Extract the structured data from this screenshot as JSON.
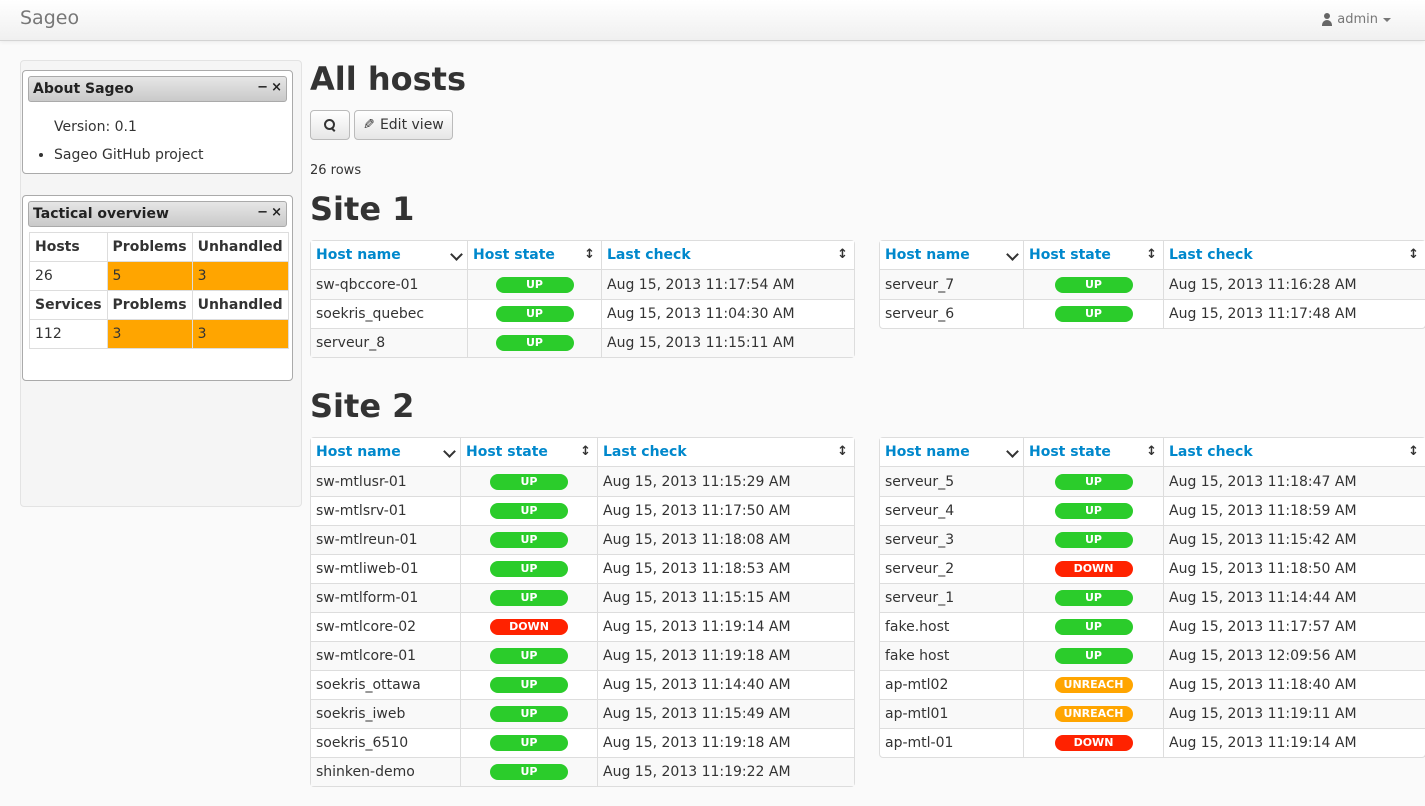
{
  "app": {
    "brand": "Sageo",
    "user": "admin"
  },
  "colors": {
    "up": "#2bcc2b",
    "down": "#ff2200",
    "unreach": "#ffa500",
    "link": "#0088cc",
    "warning": "#ffa500"
  },
  "about": {
    "title": "About Sageo",
    "minimize": "−",
    "close": "×",
    "version": "Version: 0.1",
    "link": "Sageo GitHub project"
  },
  "tactical": {
    "title": "Tactical overview",
    "minimize": "−",
    "close": "×",
    "hosts_label": "Hosts",
    "problems_label": "Problems",
    "unhandled_label": "Unhandled",
    "hosts": "26",
    "hosts_problems": "5",
    "hosts_unhandled": "3",
    "services_label": "Services",
    "services": "112",
    "services_problems": "3",
    "services_unhandled": "3"
  },
  "main": {
    "title": "All hosts",
    "edit_view": "Edit view",
    "rows": "26 rows",
    "columns": {
      "host": "Host name",
      "state": "Host state",
      "check": "Last check"
    }
  },
  "sites": [
    {
      "title": "Site 1",
      "left": [
        {
          "host": "sw-qbccore-01",
          "state": "UP",
          "check": "Aug 15, 2013 11:17:54 AM"
        },
        {
          "host": "soekris_quebec",
          "state": "UP",
          "check": "Aug 15, 2013 11:04:30 AM"
        },
        {
          "host": "serveur_8",
          "state": "UP",
          "check": "Aug 15, 2013 11:15:11 AM"
        }
      ],
      "right": [
        {
          "host": "serveur_7",
          "state": "UP",
          "check": "Aug 15, 2013 11:16:28 AM"
        },
        {
          "host": "serveur_6",
          "state": "UP",
          "check": "Aug 15, 2013 11:17:48 AM"
        }
      ]
    },
    {
      "title": "Site 2",
      "left": [
        {
          "host": "sw-mtlusr-01",
          "state": "UP",
          "check": "Aug 15, 2013 11:15:29 AM"
        },
        {
          "host": "sw-mtlsrv-01",
          "state": "UP",
          "check": "Aug 15, 2013 11:17:50 AM"
        },
        {
          "host": "sw-mtlreun-01",
          "state": "UP",
          "check": "Aug 15, 2013 11:18:08 AM"
        },
        {
          "host": "sw-mtliweb-01",
          "state": "UP",
          "check": "Aug 15, 2013 11:18:53 AM"
        },
        {
          "host": "sw-mtlform-01",
          "state": "UP",
          "check": "Aug 15, 2013 11:15:15 AM"
        },
        {
          "host": "sw-mtlcore-02",
          "state": "DOWN",
          "check": "Aug 15, 2013 11:19:14 AM"
        },
        {
          "host": "sw-mtlcore-01",
          "state": "UP",
          "check": "Aug 15, 2013 11:19:18 AM"
        },
        {
          "host": "soekris_ottawa",
          "state": "UP",
          "check": "Aug 15, 2013 11:14:40 AM"
        },
        {
          "host": "soekris_iweb",
          "state": "UP",
          "check": "Aug 15, 2013 11:15:49 AM"
        },
        {
          "host": "soekris_6510",
          "state": "UP",
          "check": "Aug 15, 2013 11:19:18 AM"
        },
        {
          "host": "shinken-demo",
          "state": "UP",
          "check": "Aug 15, 2013 11:19:22 AM"
        }
      ],
      "right": [
        {
          "host": "serveur_5",
          "state": "UP",
          "check": "Aug 15, 2013 11:18:47 AM"
        },
        {
          "host": "serveur_4",
          "state": "UP",
          "check": "Aug 15, 2013 11:18:59 AM"
        },
        {
          "host": "serveur_3",
          "state": "UP",
          "check": "Aug 15, 2013 11:15:42 AM"
        },
        {
          "host": "serveur_2",
          "state": "DOWN",
          "check": "Aug 15, 2013 11:18:50 AM"
        },
        {
          "host": "serveur_1",
          "state": "UP",
          "check": "Aug 15, 2013 11:14:44 AM"
        },
        {
          "host": "fake.host",
          "state": "UP",
          "check": "Aug 15, 2013 11:17:57 AM"
        },
        {
          "host": "fake host",
          "state": "UP",
          "check": "Aug 15, 2013 12:09:56 AM"
        },
        {
          "host": "ap-mtl02",
          "state": "UNREACH",
          "check": "Aug 15, 2013 11:18:40 AM"
        },
        {
          "host": "ap-mtl01",
          "state": "UNREACH",
          "check": "Aug 15, 2013 11:19:11 AM"
        },
        {
          "host": "ap-mtl-01",
          "state": "DOWN",
          "check": "Aug 15, 2013 11:19:14 AM"
        }
      ]
    }
  ]
}
